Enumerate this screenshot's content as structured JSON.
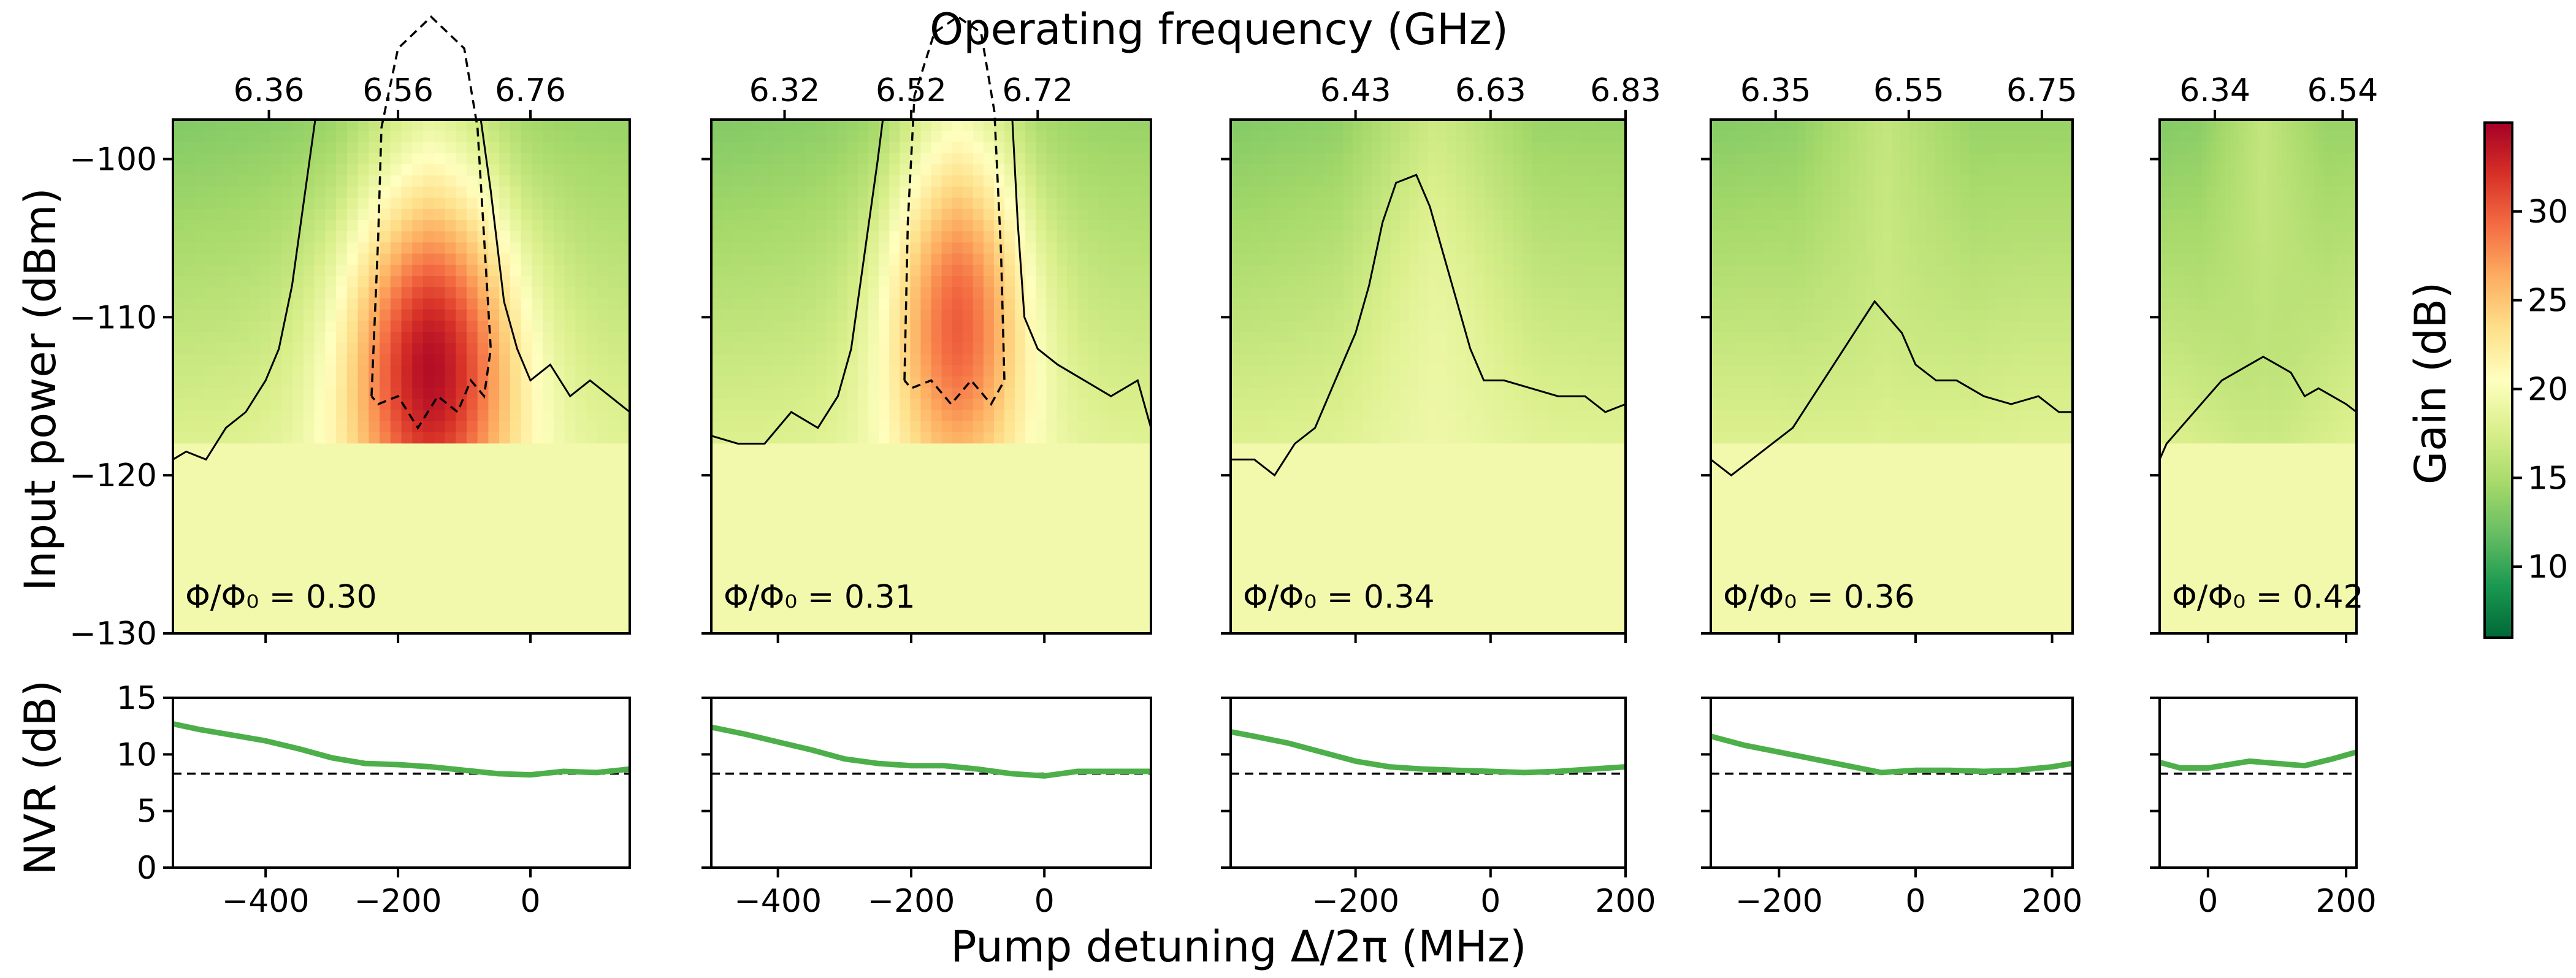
{
  "figure": {
    "top_axis_label": "Operating frequency (GHz)",
    "bottom_axis_label": "Pump detuning Δ/2π (MHz)",
    "left_top_label": "Input power (dBm)",
    "left_bottom_label": "NVR (dB)",
    "colorbar_label": "Gain (dB)"
  },
  "chart_data": {
    "type": "heatmap",
    "colormap": "RdYlGn_r",
    "colorbar": {
      "label": "Gain (dB)",
      "range": [
        6,
        35
      ],
      "ticks": [
        10,
        15,
        20,
        25,
        30
      ]
    },
    "power_axis": {
      "label": "Input power (dBm)",
      "range": [
        -130,
        -97.5
      ],
      "ticks": [
        -100,
        -110,
        -120,
        -130
      ]
    },
    "nvr_axis": {
      "label": "NVR (dB)",
      "range": [
        0,
        15
      ],
      "ticks": [
        0,
        5,
        10,
        15
      ],
      "reference_line": 8.3
    },
    "detuning_axis_label": "Pump detuning Δ/2π (MHz)",
    "frequency_axis_label": "Operating frequency (GHz)",
    "panels": [
      {
        "flux_label": "Φ/Φ₀ = 0.30",
        "detuning_range": [
          -540,
          150
        ],
        "detuning_ticks": [
          -400,
          -200,
          0
        ],
        "freq_ticks": [
          {
            "label": "6.36",
            "detuning": -395
          },
          {
            "label": "6.56",
            "detuning": -200
          },
          {
            "label": "6.76",
            "detuning": 0
          }
        ],
        "peak_detuning": -150,
        "peak_width": 190,
        "peak_gain": 35,
        "peak_power": -113,
        "contour_solid": [
          [
            -540,
            -119
          ],
          [
            -520,
            -118.5
          ],
          [
            -490,
            -119
          ],
          [
            -460,
            -117
          ],
          [
            -430,
            -116
          ],
          [
            -400,
            -114
          ],
          [
            -380,
            -112
          ],
          [
            -360,
            -108
          ],
          [
            -340,
            -102
          ],
          [
            -320,
            -96
          ],
          [
            -270,
            -96
          ],
          [
            -240,
            -90
          ],
          [
            -90,
            -90
          ],
          [
            -80,
            -96
          ],
          [
            -60,
            -102
          ],
          [
            -40,
            -109
          ],
          [
            -20,
            -112
          ],
          [
            0,
            -114
          ],
          [
            30,
            -113
          ],
          [
            60,
            -115
          ],
          [
            90,
            -114
          ],
          [
            120,
            -115
          ],
          [
            150,
            -116
          ]
        ],
        "contour_dashed": [
          [
            -240,
            -115
          ],
          [
            -230,
            -105
          ],
          [
            -225,
            -98
          ],
          [
            -200,
            -93
          ],
          [
            -150,
            -91
          ],
          [
            -100,
            -93
          ],
          [
            -80,
            -98
          ],
          [
            -70,
            -105
          ],
          [
            -60,
            -112
          ],
          [
            -70,
            -115
          ],
          [
            -90,
            -114
          ],
          [
            -110,
            -116
          ],
          [
            -140,
            -115
          ],
          [
            -170,
            -117
          ],
          [
            -200,
            -115
          ],
          [
            -230,
            -115.5
          ],
          [
            -240,
            -115
          ]
        ],
        "nvr": [
          [
            -540,
            12.7
          ],
          [
            -500,
            12.2
          ],
          [
            -450,
            11.7
          ],
          [
            -400,
            11.2
          ],
          [
            -350,
            10.5
          ],
          [
            -300,
            9.7
          ],
          [
            -250,
            9.2
          ],
          [
            -200,
            9.1
          ],
          [
            -150,
            8.9
          ],
          [
            -100,
            8.6
          ],
          [
            -50,
            8.3
          ],
          [
            0,
            8.2
          ],
          [
            50,
            8.5
          ],
          [
            100,
            8.4
          ],
          [
            150,
            8.7
          ]
        ]
      },
      {
        "flux_label": "Φ/Φ₀ = 0.31",
        "detuning_range": [
          -500,
          160
        ],
        "detuning_ticks": [
          -400,
          -200,
          0
        ],
        "freq_ticks": [
          {
            "label": "6.32",
            "detuning": -390
          },
          {
            "label": "6.52",
            "detuning": -200
          },
          {
            "label": "6.72",
            "detuning": -10
          }
        ],
        "peak_detuning": -130,
        "peak_width": 160,
        "peak_gain": 31,
        "peak_power": -110,
        "contour_solid": [
          [
            -500,
            -117.5
          ],
          [
            -460,
            -118
          ],
          [
            -420,
            -118
          ],
          [
            -380,
            -116
          ],
          [
            -340,
            -117
          ],
          [
            -310,
            -115
          ],
          [
            -290,
            -112
          ],
          [
            -270,
            -106
          ],
          [
            -250,
            -100
          ],
          [
            -235,
            -95
          ],
          [
            -220,
            -90
          ],
          [
            -60,
            -90
          ],
          [
            -50,
            -96
          ],
          [
            -40,
            -104
          ],
          [
            -30,
            -110
          ],
          [
            -10,
            -112
          ],
          [
            20,
            -113
          ],
          [
            60,
            -114
          ],
          [
            100,
            -115
          ],
          [
            140,
            -114
          ],
          [
            160,
            -117
          ]
        ],
        "contour_dashed": [
          [
            -210,
            -114
          ],
          [
            -205,
            -104
          ],
          [
            -195,
            -96
          ],
          [
            -165,
            -92
          ],
          [
            -130,
            -91
          ],
          [
            -95,
            -92
          ],
          [
            -75,
            -97
          ],
          [
            -65,
            -106
          ],
          [
            -60,
            -114
          ],
          [
            -80,
            -115.5
          ],
          [
            -110,
            -114
          ],
          [
            -140,
            -115.5
          ],
          [
            -170,
            -114
          ],
          [
            -200,
            -114.5
          ],
          [
            -210,
            -114
          ]
        ],
        "nvr": [
          [
            -500,
            12.4
          ],
          [
            -450,
            11.8
          ],
          [
            -400,
            11.1
          ],
          [
            -350,
            10.4
          ],
          [
            -300,
            9.6
          ],
          [
            -250,
            9.2
          ],
          [
            -200,
            9.0
          ],
          [
            -150,
            9.0
          ],
          [
            -100,
            8.7
          ],
          [
            -50,
            8.3
          ],
          [
            0,
            8.1
          ],
          [
            50,
            8.5
          ],
          [
            100,
            8.5
          ],
          [
            160,
            8.5
          ]
        ]
      },
      {
        "flux_label": "Φ/Φ₀ = 0.34",
        "detuning_range": [
          -385,
          200
        ],
        "detuning_ticks": [
          -200,
          0,
          200
        ],
        "freq_ticks": [
          {
            "label": "6.43",
            "detuning": -200
          },
          {
            "label": "6.63",
            "detuning": 0
          },
          {
            "label": "6.83",
            "detuning": 200
          }
        ],
        "peak_detuning": -80,
        "peak_width": 190,
        "peak_gain": 20,
        "peak_power": -108,
        "contour_solid": [
          [
            -385,
            -119
          ],
          [
            -350,
            -119
          ],
          [
            -320,
            -120
          ],
          [
            -290,
            -118
          ],
          [
            -260,
            -117
          ],
          [
            -230,
            -114
          ],
          [
            -200,
            -111
          ],
          [
            -180,
            -108
          ],
          [
            -160,
            -104
          ],
          [
            -140,
            -101.5
          ],
          [
            -110,
            -101
          ],
          [
            -90,
            -103
          ],
          [
            -70,
            -106
          ],
          [
            -50,
            -109
          ],
          [
            -30,
            -112
          ],
          [
            -10,
            -114
          ],
          [
            20,
            -114
          ],
          [
            60,
            -114.5
          ],
          [
            100,
            -115
          ],
          [
            140,
            -115
          ],
          [
            170,
            -116
          ],
          [
            200,
            -115.5
          ]
        ],
        "contour_dashed": [],
        "nvr": [
          [
            -385,
            12.0
          ],
          [
            -350,
            11.6
          ],
          [
            -300,
            11.0
          ],
          [
            -250,
            10.2
          ],
          [
            -200,
            9.4
          ],
          [
            -150,
            8.9
          ],
          [
            -100,
            8.7
          ],
          [
            -50,
            8.6
          ],
          [
            0,
            8.5
          ],
          [
            50,
            8.4
          ],
          [
            100,
            8.5
          ],
          [
            150,
            8.7
          ],
          [
            200,
            8.9
          ]
        ]
      },
      {
        "flux_label": "Φ/Φ₀ = 0.36",
        "detuning_range": [
          -300,
          230
        ],
        "detuning_ticks": [
          -200,
          0,
          200
        ],
        "freq_ticks": [
          {
            "label": "6.35",
            "detuning": -205
          },
          {
            "label": "6.55",
            "detuning": -10
          },
          {
            "label": "6.75",
            "detuning": 185
          }
        ],
        "peak_detuning": -45,
        "peak_width": 170,
        "peak_gain": 18,
        "peak_power": -112,
        "contour_solid": [
          [
            -300,
            -119
          ],
          [
            -270,
            -120
          ],
          [
            -240,
            -119
          ],
          [
            -210,
            -118
          ],
          [
            -180,
            -117
          ],
          [
            -150,
            -115
          ],
          [
            -120,
            -113
          ],
          [
            -90,
            -111
          ],
          [
            -60,
            -109
          ],
          [
            -40,
            -110
          ],
          [
            -20,
            -111
          ],
          [
            0,
            -113
          ],
          [
            30,
            -114
          ],
          [
            60,
            -114
          ],
          [
            100,
            -115
          ],
          [
            140,
            -115.5
          ],
          [
            180,
            -115
          ],
          [
            210,
            -116
          ],
          [
            230,
            -116
          ]
        ],
        "contour_dashed": [],
        "nvr": [
          [
            -300,
            11.6
          ],
          [
            -250,
            10.8
          ],
          [
            -200,
            10.2
          ],
          [
            -150,
            9.6
          ],
          [
            -100,
            9.0
          ],
          [
            -50,
            8.4
          ],
          [
            0,
            8.6
          ],
          [
            50,
            8.6
          ],
          [
            100,
            8.5
          ],
          [
            150,
            8.6
          ],
          [
            200,
            8.9
          ],
          [
            230,
            9.2
          ]
        ]
      },
      {
        "flux_label": "Φ/Φ₀ = 0.42",
        "detuning_range": [
          -70,
          215
        ],
        "detuning_ticks": [
          0,
          200
        ],
        "freq_ticks": [
          {
            "label": "6.34",
            "detuning": 10
          },
          {
            "label": "6.54",
            "detuning": 195
          }
        ],
        "peak_detuning": 80,
        "peak_width": 120,
        "peak_gain": 17,
        "peak_power": -114,
        "contour_solid": [
          [
            -70,
            -119
          ],
          [
            -60,
            -118
          ],
          [
            -40,
            -117
          ],
          [
            -20,
            -116
          ],
          [
            0,
            -115
          ],
          [
            20,
            -114
          ],
          [
            40,
            -113.5
          ],
          [
            60,
            -113
          ],
          [
            80,
            -112.5
          ],
          [
            100,
            -113
          ],
          [
            120,
            -113.5
          ],
          [
            140,
            -115
          ],
          [
            160,
            -114.5
          ],
          [
            180,
            -115
          ],
          [
            200,
            -115.5
          ],
          [
            215,
            -116
          ]
        ],
        "contour_dashed": [],
        "nvr": [
          [
            -70,
            9.3
          ],
          [
            -40,
            8.8
          ],
          [
            0,
            8.8
          ],
          [
            30,
            9.1
          ],
          [
            60,
            9.4
          ],
          [
            100,
            9.2
          ],
          [
            140,
            9.0
          ],
          [
            180,
            9.6
          ],
          [
            215,
            10.2
          ]
        ]
      }
    ]
  }
}
